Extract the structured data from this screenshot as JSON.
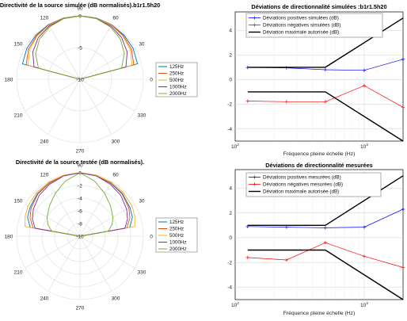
{
  "chart_data": [
    {
      "type": "polar",
      "title": "Directivité de la source simulée (dB normalisés).b1r1.5h20",
      "angle_ticks": [
        "90",
        "60",
        "30",
        "0",
        "330",
        "300",
        "270",
        "240",
        "210",
        "180",
        "150",
        "120"
      ],
      "radial_ticks": [
        "0",
        "-5",
        "-10"
      ],
      "rlim": [
        -10,
        0
      ],
      "legend_placement": "right",
      "series": [
        {
          "name": "125Hz",
          "color": "#0072BD",
          "angles": [
            0,
            15,
            30,
            45,
            60,
            75,
            90
          ],
          "values": [
            -10,
            -0.6,
            -0.3,
            -0.15,
            -0.05,
            -0.01,
            0
          ]
        },
        {
          "name": "250Hz",
          "color": "#D95319",
          "angles": [
            0,
            15,
            30,
            45,
            60,
            75,
            90
          ],
          "values": [
            -10,
            -1.2,
            -0.6,
            -0.3,
            -0.1,
            -0.02,
            0
          ]
        },
        {
          "name": "500Hz",
          "color": "#EDB120",
          "angles": [
            0,
            15,
            30,
            45,
            60,
            75,
            90
          ],
          "values": [
            -10,
            -1.5,
            -0.8,
            -0.4,
            -0.15,
            -0.03,
            0
          ]
        },
        {
          "name": "1000Hz",
          "color": "#7E2F8E",
          "angles": [
            0,
            15,
            30,
            45,
            60,
            75,
            90
          ],
          "values": [
            -10,
            -2.5,
            -1.4,
            -0.7,
            -0.3,
            -0.07,
            0
          ]
        },
        {
          "name": "2000Hz",
          "color": "#77AC30",
          "angles": [
            0,
            15,
            30,
            45,
            60,
            75,
            90
          ],
          "values": [
            -10,
            -3.2,
            -1.9,
            -1.0,
            -0.45,
            -0.1,
            0
          ]
        }
      ]
    },
    {
      "type": "line",
      "title": "Déviations de directionnalité simulées :b1r1.5h20",
      "xlabel": "Fréquence pleine échelle (Hz)",
      "xscale": "log",
      "xlim": [
        100,
        2000
      ],
      "ylim": [
        -5,
        5.5
      ],
      "x_ticks": [
        "10^2",
        "10^3"
      ],
      "y_ticks": [
        -4,
        -2,
        0,
        2,
        4
      ],
      "grid": true,
      "legend_placement": "top",
      "series": [
        {
          "name": "Déviations positives simulées (dB)",
          "color": "#0000FF",
          "marker": "+",
          "x": [
            125,
            250,
            500,
            1000,
            2000
          ],
          "y": [
            0.98,
            0.95,
            0.8,
            0.75,
            1.65
          ]
        },
        {
          "name": "Déviations négatives simulées (dB)",
          "color": "#FF0000",
          "marker": "+",
          "x": [
            125,
            250,
            500,
            1000,
            2000
          ],
          "y": [
            -1.75,
            -1.8,
            -1.8,
            -0.5,
            -2.25
          ]
        },
        {
          "name": "Déviation maximale autorisée (dB)",
          "color": "#000000",
          "marker": "",
          "x": [
            125,
            500,
            2000
          ],
          "y": [
            1,
            1,
            5
          ]
        },
        {
          "name": "",
          "color": "#000000",
          "marker": "",
          "x": [
            125,
            500,
            2000
          ],
          "y": [
            -1,
            -1,
            -5
          ]
        }
      ]
    },
    {
      "type": "polar",
      "title": "Directivité de la source testée (dB normalisés).",
      "angle_ticks": [
        "90",
        "60",
        "30",
        "0",
        "330",
        "300",
        "270",
        "240",
        "210",
        "180",
        "150",
        "120"
      ],
      "radial_ticks": [
        "0",
        "-2",
        "-4",
        "-6",
        "-8",
        "-10"
      ],
      "rlim": [
        -10,
        0
      ],
      "legend_placement": "right",
      "series": [
        {
          "name": "125Hz",
          "color": "#0072BD",
          "angles": [
            0,
            10,
            20,
            30,
            45,
            60,
            75,
            90
          ],
          "values": [
            -10,
            -2.0,
            -1.2,
            -0.9,
            -0.5,
            -0.3,
            -0.1,
            0
          ]
        },
        {
          "name": "250Hz",
          "color": "#D95319",
          "angles": [
            0,
            10,
            20,
            30,
            45,
            60,
            75,
            90
          ],
          "values": [
            -10,
            -2.5,
            -1.6,
            -1.1,
            -0.6,
            -0.35,
            -0.1,
            0
          ]
        },
        {
          "name": "500Hz",
          "color": "#EDB120",
          "angles": [
            0,
            10,
            20,
            30,
            45,
            60,
            75,
            90
          ],
          "values": [
            -10,
            -1.2,
            -0.8,
            -0.5,
            -0.3,
            -0.15,
            -0.05,
            0
          ]
        },
        {
          "name": "1000Hz",
          "color": "#7E2F8E",
          "angles": [
            0,
            10,
            20,
            30,
            45,
            60,
            75,
            90
          ],
          "values": [
            -10,
            -2.8,
            -2.0,
            -1.5,
            -0.9,
            -0.5,
            -0.15,
            0
          ]
        },
        {
          "name": "2000Hz",
          "color": "#77AC30",
          "angles": [
            0,
            10,
            20,
            30,
            45,
            60,
            75,
            90
          ],
          "values": [
            -10,
            -5.5,
            -4.6,
            -4.0,
            -3.2,
            -2.2,
            -1.0,
            0
          ]
        }
      ]
    },
    {
      "type": "line",
      "title": "Déviations de directionnalité mesurées",
      "xlabel": "Fréquence pleine échelle (Hz)",
      "xscale": "log",
      "xlim": [
        100,
        2000
      ],
      "ylim": [
        -5,
        5.5
      ],
      "x_ticks": [
        "10^2",
        "10^3"
      ],
      "y_ticks": [
        -4,
        -2,
        0,
        2,
        4
      ],
      "grid": true,
      "legend_placement": "top",
      "series": [
        {
          "name": "Déviations positives mesurées (dB)",
          "color": "#0000FF",
          "marker": "+",
          "x": [
            125,
            250,
            500,
            1000,
            2000
          ],
          "y": [
            0.9,
            0.85,
            0.8,
            0.85,
            2.3
          ]
        },
        {
          "name": "Déviations négatives mesurées (dB)",
          "color": "#FF0000",
          "marker": "+",
          "x": [
            125,
            250,
            500,
            1000,
            2000
          ],
          "y": [
            -1.6,
            -1.8,
            -0.4,
            -1.5,
            -2.4
          ]
        },
        {
          "name": "Déviation maximale autorisée (dB)",
          "color": "#000000",
          "marker": "",
          "x": [
            125,
            500,
            2000
          ],
          "y": [
            1,
            1,
            5
          ]
        },
        {
          "name": "",
          "color": "#000000",
          "marker": "",
          "x": [
            125,
            500,
            2000
          ],
          "y": [
            -1,
            -1,
            -5
          ]
        }
      ]
    }
  ]
}
